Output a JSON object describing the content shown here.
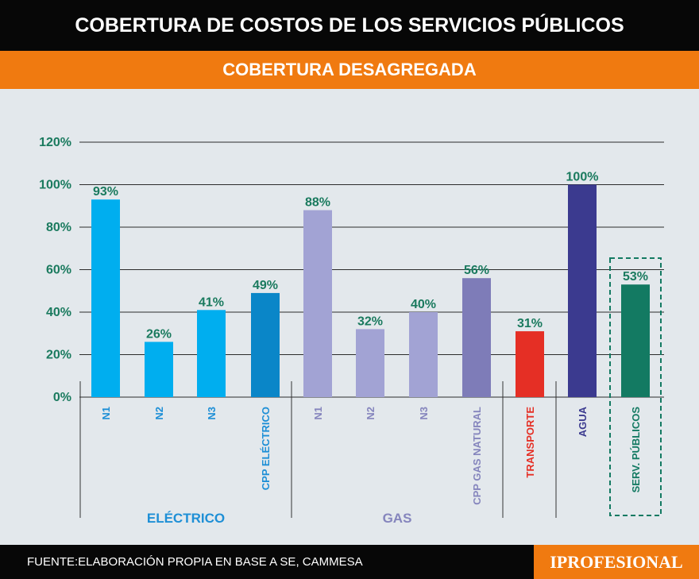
{
  "header": {
    "title": "COBERTURA DE COSTOS DE LOS SERVICIOS PÚBLICOS",
    "subtitle": "COBERTURA DESAGREGADA"
  },
  "footer": {
    "source": "FUENTE:ELABORACIÓN PROPIA EN BASE A SE, CAMMESA",
    "brand": "IPROFESIONAL"
  },
  "colors": {
    "title_bg": "#070707",
    "accent": "#f07a10",
    "background": "#e3e8ec",
    "label_green": "#1a7a5e",
    "electrico_label": "#1e8fd6",
    "gas_label": "#8585bd"
  },
  "chart_data": {
    "type": "bar",
    "title": "COBERTURA DESAGREGADA",
    "ylabel": "",
    "xlabel": "",
    "ylim": [
      0,
      120
    ],
    "yticks": [
      "0%",
      "20%",
      "40%",
      "60%",
      "80%",
      "100%",
      "120%"
    ],
    "grid": true,
    "bars": [
      {
        "category": "N1",
        "value": 93,
        "label": "93%",
        "color": "#00aeef",
        "label_color": "#1e8fd6"
      },
      {
        "category": "N2",
        "value": 26,
        "label": "26%",
        "color": "#00aeef",
        "label_color": "#1e8fd6"
      },
      {
        "category": "N3",
        "value": 41,
        "label": "41%",
        "color": "#00aeef",
        "label_color": "#1e8fd6"
      },
      {
        "category": "CPP ELÉCTRICO",
        "value": 49,
        "label": "49%",
        "color": "#0a86c8",
        "label_color": "#1e8fd6"
      },
      {
        "category": "N1",
        "value": 88,
        "label": "88%",
        "color": "#a2a3d4",
        "label_color": "#8585bd"
      },
      {
        "category": "N2",
        "value": 32,
        "label": "32%",
        "color": "#a2a3d4",
        "label_color": "#8585bd"
      },
      {
        "category": "N3",
        "value": 40,
        "label": "40%",
        "color": "#a2a3d4",
        "label_color": "#8585bd"
      },
      {
        "category": "CPP GAS NATURAL",
        "value": 56,
        "label": "56%",
        "color": "#7e7cb8",
        "label_color": "#8585bd"
      },
      {
        "category": "TRANSPORTE",
        "value": 31,
        "label": "31%",
        "color": "#e52f25",
        "label_color": "#e52f25"
      },
      {
        "category": "AGUA",
        "value": 100,
        "label": "100%",
        "color": "#3b3a8f",
        "label_color": "#3b3a8f"
      },
      {
        "category": "SERV. PÚBLICOS",
        "value": 53,
        "label": "53%",
        "color": "#137a62",
        "label_color": "#137a62",
        "highlighted": true
      }
    ],
    "groups": [
      {
        "name": "ELÉCTRICO",
        "color": "#1e8fd6",
        "bars": [
          0,
          1,
          2,
          3
        ]
      },
      {
        "name": "GAS",
        "color": "#8585bd",
        "bars": [
          4,
          5,
          6,
          7
        ]
      }
    ]
  }
}
